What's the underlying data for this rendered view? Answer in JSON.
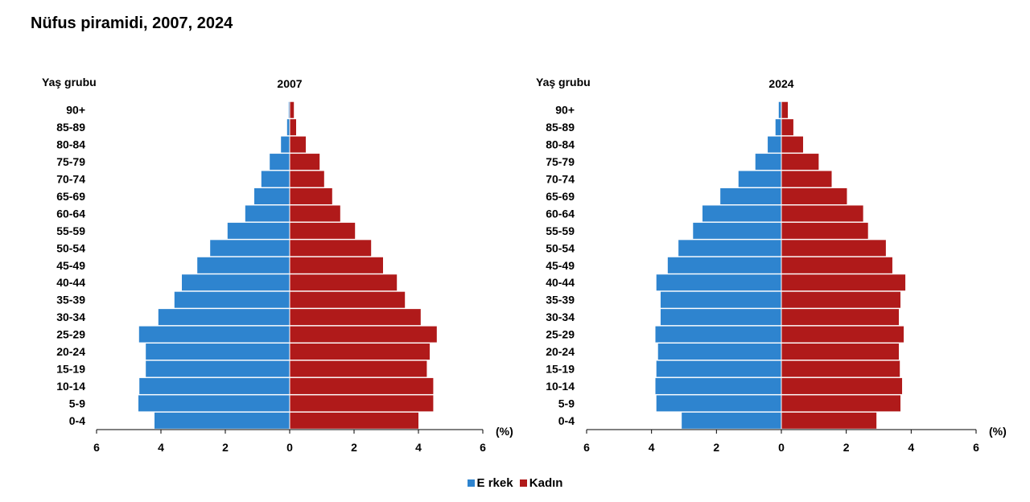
{
  "title": "Nüfus piramidi, 2007, 2024",
  "colors": {
    "male": "#2e84cf",
    "female": "#b01a1a"
  },
  "legend": [
    {
      "label": "E rkek",
      "color_key": "male"
    },
    {
      "label": "Kadın",
      "color_key": "female"
    }
  ],
  "chart_data": [
    {
      "type": "bar",
      "orientation": "horizontal",
      "title": "2007",
      "ylabel": "Yaş grubu",
      "xlabel": "(%)",
      "xlim": [
        -6,
        6
      ],
      "xticks": [
        "6",
        "4",
        "2",
        "0",
        "2",
        "4",
        "6"
      ],
      "categories": [
        "90+",
        "85-89",
        "80-84",
        "75-79",
        "70-74",
        "65-69",
        "60-64",
        "55-59",
        "50-54",
        "45-49",
        "40-44",
        "35-39",
        "30-34",
        "25-29",
        "20-24",
        "15-19",
        "10-14",
        "5-9",
        "0-4"
      ],
      "series": [
        {
          "name": "E rkek",
          "color_key": "male",
          "side": "left",
          "values": [
            0.03,
            0.08,
            0.27,
            0.62,
            0.88,
            1.1,
            1.38,
            1.93,
            2.47,
            2.87,
            3.35,
            3.58,
            4.08,
            4.68,
            4.47,
            4.47,
            4.67,
            4.7,
            4.2
          ]
        },
        {
          "name": "Kadın",
          "color_key": "female",
          "side": "right",
          "values": [
            0.13,
            0.2,
            0.5,
            0.93,
            1.07,
            1.32,
            1.57,
            2.03,
            2.53,
            2.9,
            3.33,
            3.58,
            4.07,
            4.57,
            4.35,
            4.26,
            4.46,
            4.46,
            4.0
          ]
        }
      ]
    },
    {
      "type": "bar",
      "orientation": "horizontal",
      "title": "2024",
      "ylabel": "Yaş grubu",
      "xlabel": "(%)",
      "xlim": [
        -6,
        6
      ],
      "xticks": [
        "6",
        "4",
        "2",
        "0",
        "2",
        "4",
        "6"
      ],
      "categories": [
        "90+",
        "85-89",
        "80-84",
        "75-79",
        "70-74",
        "65-69",
        "60-64",
        "55-59",
        "50-54",
        "45-49",
        "40-44",
        "35-39",
        "30-34",
        "25-29",
        "20-24",
        "15-19",
        "10-14",
        "5-9",
        "0-4"
      ],
      "series": [
        {
          "name": "E rkek",
          "color_key": "male",
          "side": "left",
          "values": [
            0.08,
            0.18,
            0.42,
            0.8,
            1.32,
            1.88,
            2.43,
            2.72,
            3.17,
            3.5,
            3.85,
            3.72,
            3.72,
            3.88,
            3.8,
            3.85,
            3.88,
            3.85,
            3.07
          ]
        },
        {
          "name": "Kadın",
          "color_key": "female",
          "side": "right",
          "values": [
            0.2,
            0.37,
            0.67,
            1.15,
            1.55,
            2.02,
            2.52,
            2.67,
            3.22,
            3.42,
            3.82,
            3.67,
            3.62,
            3.77,
            3.62,
            3.65,
            3.72,
            3.67,
            2.93
          ]
        }
      ]
    }
  ]
}
